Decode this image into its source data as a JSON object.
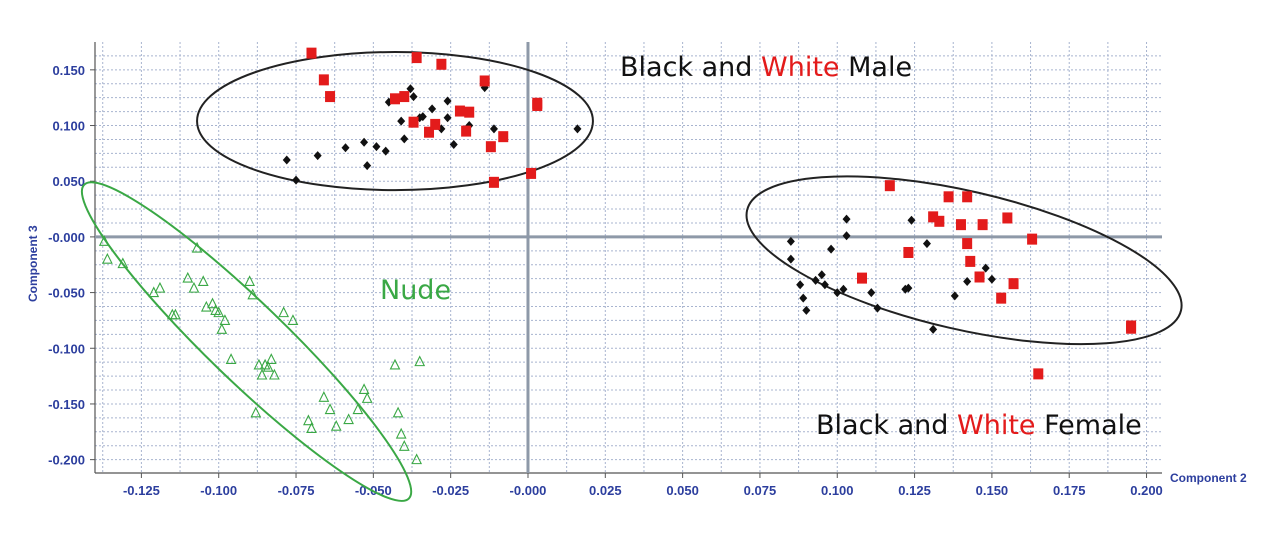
{
  "chart_data": {
    "type": "scatter",
    "xlabel": "Component 2",
    "ylabel": "Component 3",
    "xlim": [
      -0.14,
      0.205
    ],
    "ylim": [
      -0.212,
      0.175
    ],
    "x_ticks": [
      "-0.125",
      "-0.100",
      "-0.075",
      "-0.050",
      "-0.025",
      "-0.000",
      "0.025",
      "0.050",
      "0.075",
      "0.100",
      "0.125",
      "0.150",
      "0.175",
      "0.200"
    ],
    "x_tick_values": [
      -0.125,
      -0.1,
      -0.075,
      -0.05,
      -0.025,
      0,
      0.025,
      0.05,
      0.075,
      0.1,
      0.125,
      0.15,
      0.175,
      0.2
    ],
    "y_ticks": [
      "0.150",
      "0.100",
      "0.050",
      "-0.000",
      "-0.050",
      "-0.100",
      "-0.150",
      "-0.200"
    ],
    "y_tick_values": [
      0.15,
      0.1,
      0.05,
      0,
      -0.05,
      -0.1,
      -0.15,
      -0.2
    ],
    "grid": true,
    "colors": {
      "black": "#111111",
      "red": "#e31b1b",
      "green": "#3aa845",
      "ellipse": "#222222",
      "axis": "#8e99a8",
      "grid": "#a8b4cf",
      "tick": "#2c3e9e"
    },
    "annotations": {
      "male": {
        "part1": "Black and ",
        "part2": "White",
        "part3": " Male"
      },
      "female": {
        "part1": "Black and ",
        "part2": "White",
        "part3": " Female"
      },
      "nude": "Nude"
    },
    "ellipses": [
      {
        "cx": -0.043,
        "cy": 0.104,
        "rx": 0.064,
        "ry": 0.062,
        "angle": 0,
        "color": "#222222"
      },
      {
        "cx": 0.141,
        "cy": -0.021,
        "rx": 0.072,
        "ry": 0.062,
        "angle": 13,
        "color": "#222222"
      },
      {
        "cx": -0.091,
        "cy": -0.094,
        "rx": 0.073,
        "ry": 0.035,
        "angle": 44,
        "color": "#3aa845"
      }
    ],
    "series": [
      {
        "marker": "diamond",
        "color": "#111111",
        "points": [
          [
            -0.078,
            0.069
          ],
          [
            -0.075,
            0.051
          ],
          [
            -0.068,
            0.073
          ],
          [
            -0.059,
            0.08
          ],
          [
            -0.053,
            0.085
          ],
          [
            -0.052,
            0.064
          ],
          [
            -0.049,
            0.081
          ],
          [
            -0.046,
            0.077
          ],
          [
            -0.045,
            0.121
          ],
          [
            -0.041,
            0.104
          ],
          [
            -0.04,
            0.088
          ],
          [
            -0.038,
            0.133
          ],
          [
            -0.037,
            0.126
          ],
          [
            -0.035,
            0.107
          ],
          [
            -0.034,
            0.108
          ],
          [
            -0.031,
            0.115
          ],
          [
            -0.028,
            0.097
          ],
          [
            -0.026,
            0.122
          ],
          [
            -0.026,
            0.107
          ],
          [
            -0.024,
            0.083
          ],
          [
            -0.019,
            0.1
          ],
          [
            -0.014,
            0.134
          ],
          [
            -0.011,
            0.097
          ],
          [
            0.016,
            0.097
          ],
          [
            0.085,
            -0.004
          ],
          [
            0.085,
            -0.02
          ],
          [
            0.088,
            -0.043
          ],
          [
            0.089,
            -0.055
          ],
          [
            0.09,
            -0.066
          ],
          [
            0.093,
            -0.039
          ],
          [
            0.095,
            -0.034
          ],
          [
            0.096,
            -0.043
          ],
          [
            0.098,
            -0.011
          ],
          [
            0.1,
            -0.05
          ],
          [
            0.102,
            -0.047
          ],
          [
            0.103,
            0.016
          ],
          [
            0.103,
            0.001
          ],
          [
            0.111,
            -0.05
          ],
          [
            0.113,
            -0.064
          ],
          [
            0.122,
            -0.047
          ],
          [
            0.123,
            -0.046
          ],
          [
            0.124,
            0.015
          ],
          [
            0.129,
            -0.006
          ],
          [
            0.131,
            -0.083
          ],
          [
            0.138,
            -0.053
          ],
          [
            0.142,
            -0.04
          ],
          [
            0.148,
            -0.028
          ],
          [
            0.15,
            -0.038
          ]
        ]
      },
      {
        "marker": "square",
        "color": "#e31b1b",
        "points": [
          [
            -0.07,
            0.165
          ],
          [
            -0.066,
            0.141
          ],
          [
            -0.064,
            0.126
          ],
          [
            -0.043,
            0.124
          ],
          [
            -0.04,
            0.126
          ],
          [
            -0.037,
            0.103
          ],
          [
            -0.036,
            0.161
          ],
          [
            -0.032,
            0.094
          ],
          [
            -0.03,
            0.101
          ],
          [
            -0.028,
            0.155
          ],
          [
            -0.022,
            0.113
          ],
          [
            -0.02,
            0.095
          ],
          [
            -0.019,
            0.112
          ],
          [
            -0.014,
            0.14
          ],
          [
            -0.012,
            0.081
          ],
          [
            -0.008,
            0.09
          ],
          [
            -0.011,
            0.049
          ],
          [
            0.001,
            0.057
          ],
          [
            0.003,
            0.118
          ],
          [
            0.003,
            0.12
          ],
          [
            0.108,
            -0.037
          ],
          [
            0.117,
            0.046
          ],
          [
            0.123,
            -0.014
          ],
          [
            0.131,
            0.018
          ],
          [
            0.133,
            0.014
          ],
          [
            0.136,
            0.036
          ],
          [
            0.14,
            0.011
          ],
          [
            0.142,
            0.036
          ],
          [
            0.142,
            -0.006
          ],
          [
            0.143,
            -0.022
          ],
          [
            0.146,
            -0.036
          ],
          [
            0.147,
            0.011
          ],
          [
            0.153,
            -0.055
          ],
          [
            0.155,
            0.017
          ],
          [
            0.157,
            -0.042
          ],
          [
            0.163,
            -0.002
          ],
          [
            0.165,
            -0.123
          ],
          [
            0.195,
            -0.08
          ],
          [
            0.195,
            -0.082
          ]
        ]
      },
      {
        "marker": "triangle",
        "color": "#3aa845",
        "points": [
          [
            -0.137,
            -0.004
          ],
          [
            -0.136,
            -0.02
          ],
          [
            -0.131,
            -0.024
          ],
          [
            -0.121,
            -0.05
          ],
          [
            -0.119,
            -0.046
          ],
          [
            -0.115,
            -0.07
          ],
          [
            -0.114,
            -0.07
          ],
          [
            -0.11,
            -0.037
          ],
          [
            -0.108,
            -0.046
          ],
          [
            -0.107,
            -0.01
          ],
          [
            -0.105,
            -0.04
          ],
          [
            -0.104,
            -0.063
          ],
          [
            -0.102,
            -0.06
          ],
          [
            -0.101,
            -0.066
          ],
          [
            -0.1,
            -0.068
          ],
          [
            -0.099,
            -0.083
          ],
          [
            -0.098,
            -0.075
          ],
          [
            -0.096,
            -0.11
          ],
          [
            -0.09,
            -0.04
          ],
          [
            -0.089,
            -0.052
          ],
          [
            -0.087,
            -0.115
          ],
          [
            -0.086,
            -0.124
          ],
          [
            -0.085,
            -0.115
          ],
          [
            -0.084,
            -0.117
          ],
          [
            -0.083,
            -0.11
          ],
          [
            -0.082,
            -0.124
          ],
          [
            -0.079,
            -0.068
          ],
          [
            -0.076,
            -0.075
          ],
          [
            -0.088,
            -0.158
          ],
          [
            -0.071,
            -0.165
          ],
          [
            -0.07,
            -0.172
          ],
          [
            -0.066,
            -0.144
          ],
          [
            -0.064,
            -0.155
          ],
          [
            -0.062,
            -0.17
          ],
          [
            -0.058,
            -0.164
          ],
          [
            -0.055,
            -0.155
          ],
          [
            -0.053,
            -0.137
          ],
          [
            -0.052,
            -0.145
          ],
          [
            -0.043,
            -0.115
          ],
          [
            -0.042,
            -0.158
          ],
          [
            -0.041,
            -0.177
          ],
          [
            -0.04,
            -0.188
          ],
          [
            -0.036,
            -0.2
          ],
          [
            -0.035,
            -0.112
          ]
        ]
      }
    ]
  }
}
